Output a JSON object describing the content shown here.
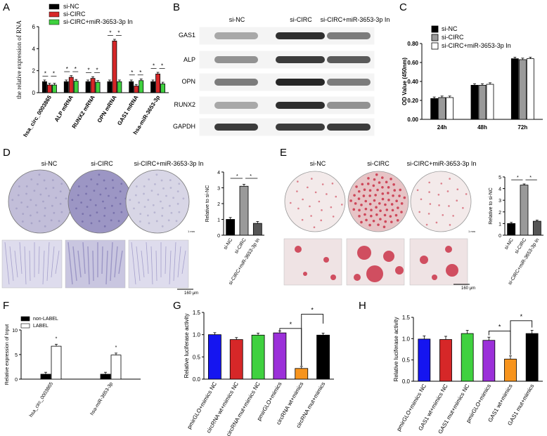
{
  "panel_letters": [
    "A",
    "B",
    "C",
    "D",
    "E",
    "F",
    "G",
    "H"
  ],
  "colors": {
    "red": "#d62728",
    "green": "#3fd13f",
    "black": "#000000",
    "gray": "#9a9a9a",
    "blue": "#1515f0",
    "purple": "#9b30d9",
    "orange": "#f7941d",
    "stain_purple": "#b7b2d4",
    "stain_red": "#c8283e"
  },
  "chart_data": [
    {
      "id": "A",
      "type": "bar",
      "ylabel": "the relative expression of RNA",
      "ylim": [
        0,
        6
      ],
      "yticks": [
        0,
        2,
        4,
        6
      ],
      "categories": [
        "hsa_circ_0003865",
        "ALP mRNA",
        "RUNX2 mRNA",
        "OPN mRNA",
        "GAS1 mRNA",
        "hsa-miR-3653-3p"
      ],
      "series": [
        {
          "name": "si-NC",
          "color": "#000000",
          "values": [
            1.0,
            1.0,
            1.0,
            1.0,
            1.0,
            1.0
          ]
        },
        {
          "name": "si-CIRC",
          "color": "#d62728",
          "values": [
            0.7,
            1.4,
            1.3,
            4.7,
            0.6,
            1.7
          ]
        },
        {
          "name": "si-CIRC+miR-3653-3p In",
          "color": "#3fd13f",
          "values": [
            0.7,
            1.05,
            0.95,
            1.0,
            1.1,
            0.8
          ]
        }
      ],
      "annotations": [
        "*"
      ]
    },
    {
      "id": "C",
      "type": "bar",
      "ylabel": "OD Value (450nm)",
      "ylim": [
        0,
        0.8
      ],
      "yticks": [
        "0.00",
        "0.20",
        "0.40",
        "0.60",
        "0.80"
      ],
      "categories": [
        "24h",
        "48h",
        "72h"
      ],
      "series": [
        {
          "name": "si-NC",
          "color": "#000000",
          "values": [
            0.22,
            0.36,
            0.64
          ]
        },
        {
          "name": "si-CIRC",
          "color": "#9a9a9a",
          "values": [
            0.23,
            0.36,
            0.63
          ]
        },
        {
          "name": "si-CIRC+miR-3653-3p In",
          "color": "#ffffff",
          "values": [
            0.23,
            0.37,
            0.64
          ]
        }
      ]
    },
    {
      "id": "D",
      "type": "bar",
      "ylabel": "Relative to si-NC",
      "ylim": [
        0,
        4
      ],
      "yticks": [
        0,
        1,
        2,
        3,
        4
      ],
      "categories": [
        "si-NC",
        "si-CIRC",
        "si-CIRC+miR-3653-3p In"
      ],
      "values": [
        1.0,
        3.1,
        0.75
      ],
      "colors": [
        "#000000",
        "#9a9a9a",
        "#555555"
      ],
      "annotations": [
        "*"
      ]
    },
    {
      "id": "E",
      "type": "bar",
      "ylabel": "Relative to si-NC",
      "ylim": [
        0,
        5
      ],
      "yticks": [
        0,
        1,
        2,
        3,
        4,
        5
      ],
      "categories": [
        "si-NC",
        "si-CIRC",
        "si-CIRC+miR-3653-3p In"
      ],
      "values": [
        1.0,
        4.3,
        1.2
      ],
      "colors": [
        "#000000",
        "#9a9a9a",
        "#555555"
      ],
      "annotations": [
        "*"
      ]
    },
    {
      "id": "F",
      "type": "bar",
      "ylabel": "Relative expression of Input",
      "ylim": [
        0,
        10
      ],
      "yticks": [
        0,
        5,
        10
      ],
      "categories": [
        "hsa_circ_0003865",
        "hsa-miR-3653-3p"
      ],
      "series": [
        {
          "name": "non-LABEL",
          "color": "#000000",
          "values": [
            1.0,
            1.0
          ]
        },
        {
          "name": "LABEL",
          "color": "#ffffff",
          "values": [
            6.7,
            4.9
          ]
        }
      ],
      "annotations": [
        "*"
      ]
    },
    {
      "id": "G",
      "type": "bar",
      "ylabel": "Relative luciferase activity",
      "ylim": [
        0,
        1.5
      ],
      "yticks": [
        "0.0",
        "0.5",
        "1.0",
        "1.5"
      ],
      "categories": [
        "pmirGLO+mimics NC",
        "circRNA wt+mimics NC",
        "circRNA mut+mimics NC",
        "pmirGLO+mimics",
        "circRNA wt+mimics",
        "circRNA mut+mimics"
      ],
      "values": [
        1.0,
        0.89,
        0.99,
        1.04,
        0.24,
        0.99
      ],
      "colors": [
        "#1515f0",
        "#d62728",
        "#3fd13f",
        "#9b30d9",
        "#f7941d",
        "#000000"
      ],
      "annotations": [
        "*"
      ]
    },
    {
      "id": "H",
      "type": "bar",
      "ylabel": "Relative luciferase activity",
      "ylim": [
        0,
        1.5
      ],
      "yticks": [
        "0.0",
        "0.5",
        "1.0",
        "1.5"
      ],
      "categories": [
        "pmirGLO+mimics NC",
        "GAS1 wt+mimics NC",
        "GAS1 mut+mimics NC",
        "pmirGLO+mimics",
        "GAS1 wt+mimics",
        "GAS1 mut+mimics"
      ],
      "values": [
        0.99,
        0.98,
        1.12,
        0.96,
        0.52,
        1.12
      ],
      "colors": [
        "#1515f0",
        "#d62728",
        "#3fd13f",
        "#9b30d9",
        "#f7941d",
        "#000000"
      ],
      "annotations": [
        "*"
      ]
    }
  ],
  "blot": {
    "columns": [
      "si-NC",
      "si-CIRC",
      "si-CIRC+miR-3653-3p In"
    ],
    "rows": [
      "GAS1",
      "ALP",
      "OPN",
      "RUNX2",
      "GAPDH"
    ]
  },
  "panel_d": {
    "columns": [
      "si-NC",
      "si-CIRC",
      "si-CIRC+miR-3653-3p In"
    ],
    "scale_small": "1 mm",
    "scale_large": "160 μm"
  },
  "panel_e": {
    "columns": [
      "si-NC",
      "si-CIRC",
      "si-CIRC+miR-3653-3p In"
    ],
    "scale_small": "1 mm",
    "scale_large": "160 μm"
  }
}
